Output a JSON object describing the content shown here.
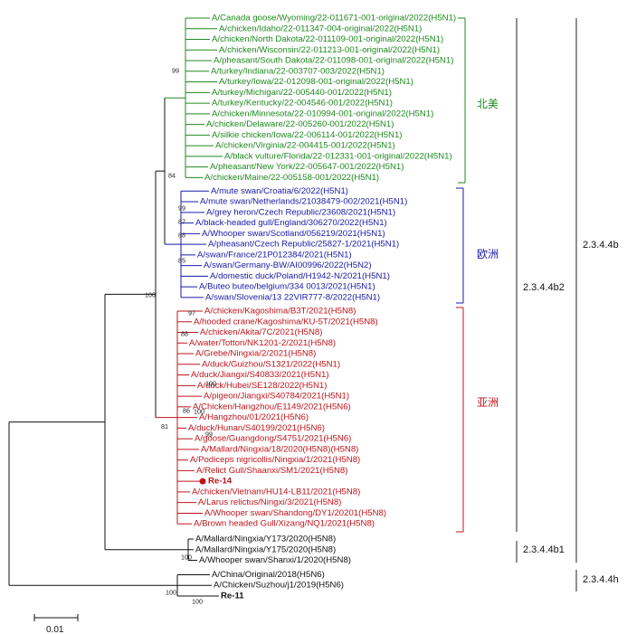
{
  "colors": {
    "north_america": "#1f8a1f",
    "europe": "#1a1aa8",
    "asia": "#c0141a",
    "other": "#111111",
    "bracket": "#222222"
  },
  "taxa": [
    {
      "label": "A/Canada goose/Wyoming/22-011671-001-original/2022(H5N1)",
      "group": "north_america"
    },
    {
      "label": "A/chicken/Idaho/22-011347-004-original/2022(H5N1)",
      "group": "north_america"
    },
    {
      "label": "A/chicken/North Dakota/22-011109-001-original/2022(H5N1)",
      "group": "north_america"
    },
    {
      "label": "A/chicken/Wisconsin/22-011213-001-original/2022(H5N1)",
      "group": "north_america"
    },
    {
      "label": "A/pheasant/South Dakota/22-011098-001-original/2022(H5N1)",
      "group": "north_america"
    },
    {
      "label": "A/turkey/Indiana/22-003707-003/2022(H5N1)",
      "group": "north_america"
    },
    {
      "label": "A/turkey/Iowa/22-012098-001-original/2022(H5N1)",
      "group": "north_america"
    },
    {
      "label": "A/turkey/Michigan/22-005440-001/2022(H5N1)",
      "group": "north_america"
    },
    {
      "label": "A/turkey/Kentucky/22-004546-001/2022(H5N1)",
      "group": "north_america"
    },
    {
      "label": "A/chicken/Minnesota/22-010994-001-original/2022(H5N1)",
      "group": "north_america"
    },
    {
      "label": "A/chicken/Delaware/22-005260-001/2022(H5N1)",
      "group": "north_america"
    },
    {
      "label": "A/silkie chicken/Iowa/22-006114-001/2022(H5N1)",
      "group": "north_america"
    },
    {
      "label": "A/chicken/Virginia/22-004415-001/2022(H5N1)",
      "group": "north_america"
    },
    {
      "label": "A/black vulture/Florida/22-012331-001-original/2022(H5N1)",
      "group": "north_america"
    },
    {
      "label": "A/pheasant/New York/22-005647-001/2022(H5N1)",
      "group": "north_america"
    },
    {
      "label": "A/chicken/Maine/22-005158-001/2022(H5N1)",
      "group": "north_america"
    },
    {
      "label": "A/mute swan/Croatia/6/2022(H5N1)",
      "group": "europe"
    },
    {
      "label": "A/mute swan/Netherlands/21038479-002/2021(H5N1)",
      "group": "europe"
    },
    {
      "label": "A/grey heron/Czech Republic/23608/2021(H5N1)",
      "group": "europe"
    },
    {
      "label": "A/black-headed gull/England/306270/2022(H5N1)",
      "group": "europe"
    },
    {
      "label": "A/Whooper swan/Scotland/056219/2021(H5N1)",
      "group": "europe"
    },
    {
      "label": "A/pheasant/Czech Republic/25827-1/2021(H5N1)",
      "group": "europe"
    },
    {
      "label": "A/swan/France/21P012384/2021(H5N1)",
      "group": "europe"
    },
    {
      "label": "A/swan/Germany-BW/AI00996/2022(H5N2)",
      "group": "europe"
    },
    {
      "label": "A/domestic duck/Poland/H1942-N/2021(H5N1)",
      "group": "europe"
    },
    {
      "label": "A/Buteo buteo/belgium/334 0013/2021(H5N1)",
      "group": "europe"
    },
    {
      "label": "A/swan/Slovenia/13 22VIR777-8/2022(H5N1)",
      "group": "europe"
    },
    {
      "label": "A/chicken/Kagoshima/B3T/2021(H5N8)",
      "group": "asia"
    },
    {
      "label": "A/hooded crane/Kagoshima/KU-5T/2021(H5N8)",
      "group": "asia"
    },
    {
      "label": "A/chicken/Akita/7C/2021(H5N8)",
      "group": "asia"
    },
    {
      "label": "A/water/Tottori/NK1201-2/2021(H5N8)",
      "group": "asia"
    },
    {
      "label": "A/Grebe/Ningxia/2/2021(H5N8)",
      "group": "asia"
    },
    {
      "label": "A/duck/Guizhou/S1321/2022(H5N1)",
      "group": "asia"
    },
    {
      "label": "A/duck/Jiangxi/S40833/2021(H5N1)",
      "group": "asia"
    },
    {
      "label": "A/duck/Hubei/SE128/2022(H5N1)",
      "group": "asia"
    },
    {
      "label": "A/pigeon/Jiangxi/S40784/2021(H5N1)",
      "group": "asia"
    },
    {
      "label": "A/Chicken/Hangzhou/E1149/2021(H5N6)",
      "group": "asia"
    },
    {
      "label": "A/Hangzhou/01/2021(H5N6)",
      "group": "asia"
    },
    {
      "label": "A/duck/Hunan/S40199/2021(H5N6)",
      "group": "asia"
    },
    {
      "label": "A/goose/Guangdong/S4751/2021(H5N6)",
      "group": "asia"
    },
    {
      "label": "A/Mallard/Ningxia/18/2020(H5N8)(H5N8)",
      "group": "asia"
    },
    {
      "label": "A/Podiceps nigricollis/Ningxia/1/2021(H5N8)",
      "group": "asia"
    },
    {
      "label": "A/Relict Gull/Shaanxi/SM1/2021(H5N8)",
      "group": "asia"
    },
    {
      "label": "Re-14",
      "group": "asia",
      "highlight": true
    },
    {
      "label": "A/chicken/Vietnam/HU14-LB11/2021(H5N8)",
      "group": "asia"
    },
    {
      "label": "A/Larus relictus/Ningxi/3/2021(H5N8)",
      "group": "asia"
    },
    {
      "label": "A/Whooper swan/Shandong/DY1/20201(H5N8)",
      "group": "asia"
    },
    {
      "label": "A/Brown headed Gull/Xizang/NQ1/2021(H5N8)",
      "group": "asia"
    },
    {
      "label": "A/Mallard/Ningxia/Y173/2020(H5N8)",
      "group": "other"
    },
    {
      "label": "A/Mallard/Ningxia/Y175/2020(H5N8)",
      "group": "other"
    },
    {
      "label": "A/Whooper swan/Shanxi/1/2020(H5N8)",
      "group": "other"
    },
    {
      "label": "A/China/Original/2018(H5N6)",
      "group": "other"
    },
    {
      "label": "A/Chicken/Suzhou/j1/2019(H5N6)",
      "group": "other"
    },
    {
      "label": "Re-11",
      "group": "other",
      "highlight": true
    }
  ],
  "bootstrap": [
    "99",
    "84",
    "99",
    "87",
    "88",
    "85",
    "100",
    "97",
    "88",
    "100",
    "86",
    "100",
    "99",
    "81",
    "100",
    "100",
    "100"
  ],
  "region_labels": {
    "north_america": "北美",
    "europe": "欧洲",
    "asia": "亚洲"
  },
  "clade_labels": {
    "b2": "2.3.4.4b2",
    "b1": "2.3.4.4b1",
    "b": "2.3.4.4b",
    "h": "2.3.4.4h"
  },
  "scale_bar": {
    "label": "0.01"
  }
}
